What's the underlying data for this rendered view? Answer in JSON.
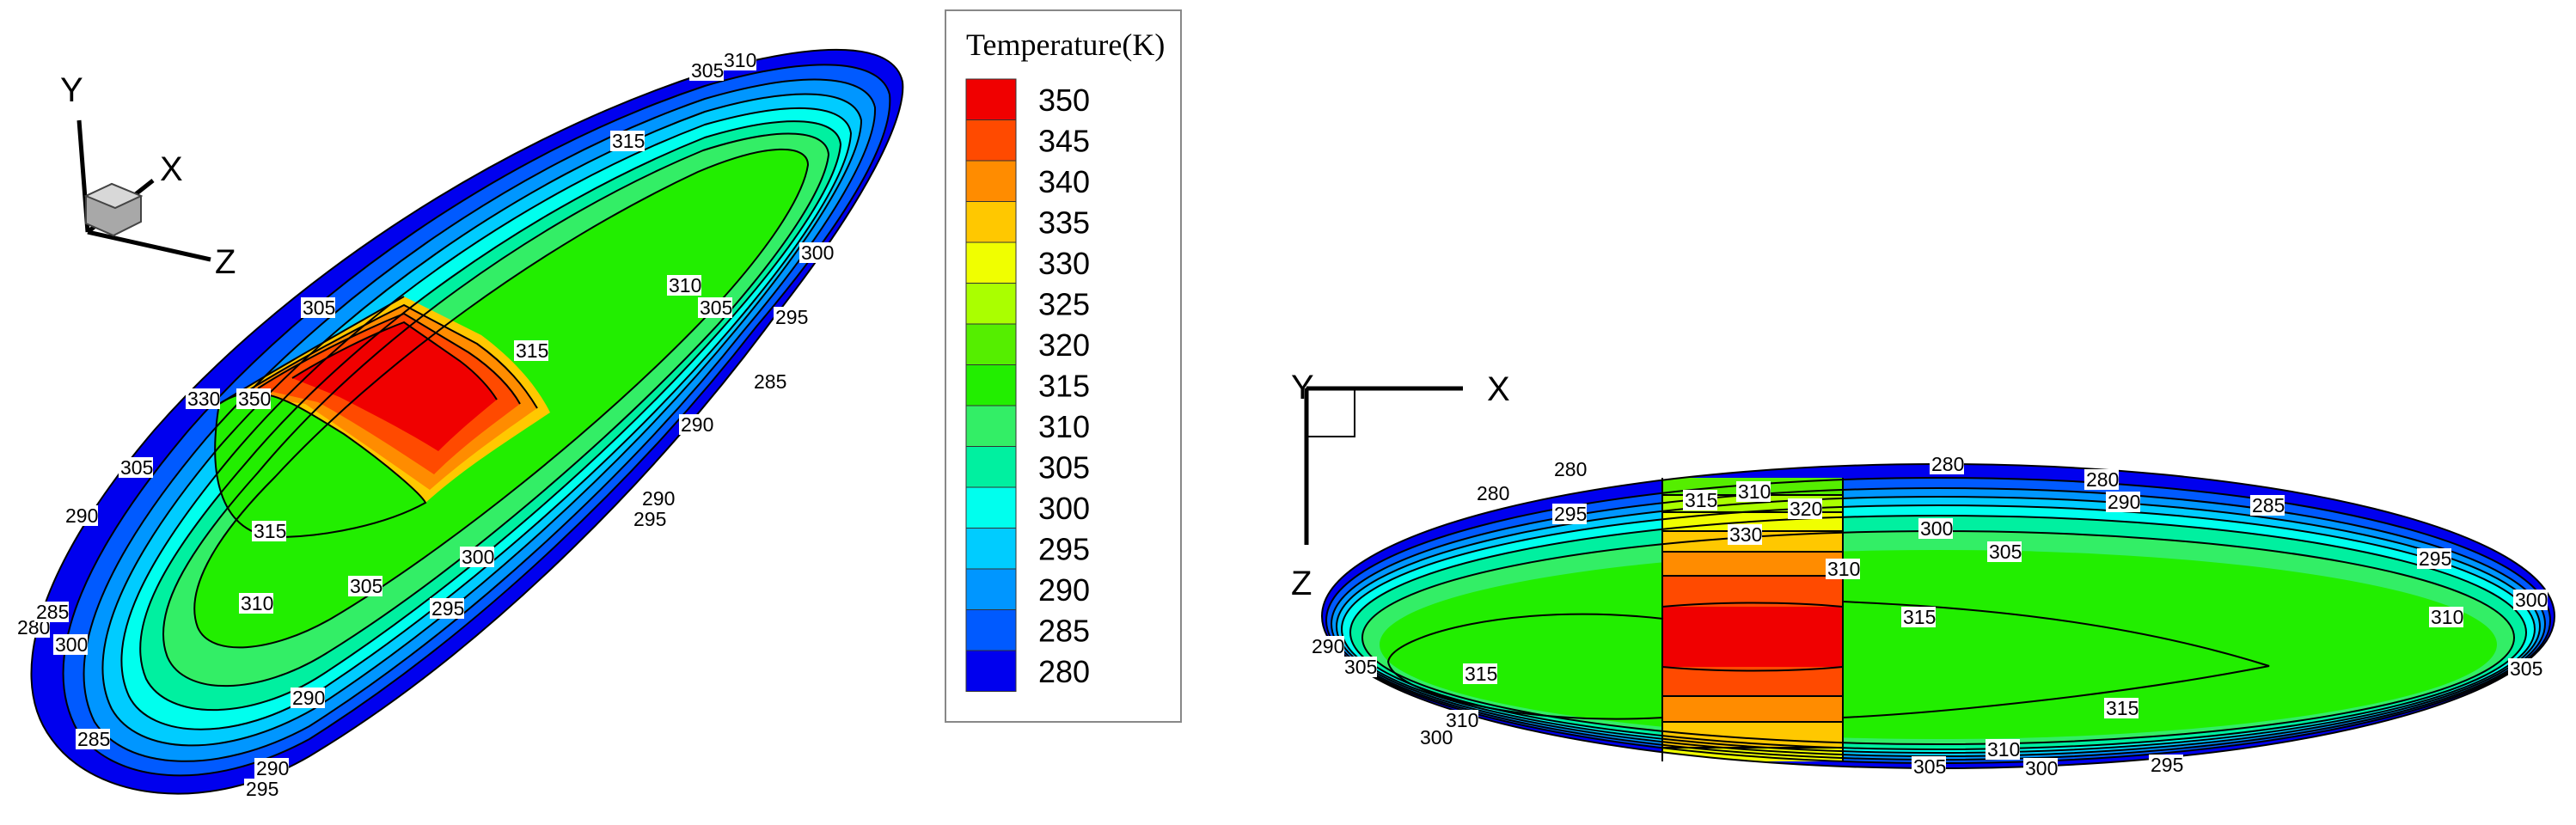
{
  "legend": {
    "title": "Temperature(K)",
    "levels": [
      {
        "value": "350",
        "color": "#f00000"
      },
      {
        "value": "345",
        "color": "#ff4a00"
      },
      {
        "value": "340",
        "color": "#ff8c00"
      },
      {
        "value": "335",
        "color": "#ffc800"
      },
      {
        "value": "330",
        "color": "#f0ff00"
      },
      {
        "value": "325",
        "color": "#aaff00"
      },
      {
        "value": "320",
        "color": "#55ee00"
      },
      {
        "value": "315",
        "color": "#22ee00"
      },
      {
        "value": "310",
        "color": "#33ee66"
      },
      {
        "value": "305",
        "color": "#00f0a0"
      },
      {
        "value": "300",
        "color": "#00ffee"
      },
      {
        "value": "295",
        "color": "#00ccff"
      },
      {
        "value": "290",
        "color": "#0096ff"
      },
      {
        "value": "285",
        "color": "#005aff"
      },
      {
        "value": "280",
        "color": "#0000ee"
      }
    ]
  },
  "left_view": {
    "triad": {
      "y": "Y",
      "x": "X",
      "z": "Z"
    },
    "labels": [
      "305",
      "310",
      "315",
      "310",
      "305",
      "300",
      "295",
      "285",
      "290",
      "290",
      "295",
      "305",
      "330",
      "350",
      "315",
      "305",
      "290",
      "315",
      "310",
      "305",
      "300",
      "295",
      "280",
      "285",
      "300",
      "285",
      "290",
      "290",
      "295"
    ]
  },
  "right_view": {
    "triad": {
      "y": "Y",
      "x": "X",
      "z": "Z"
    },
    "labels": [
      "280",
      "280",
      "280",
      "280",
      "295",
      "315",
      "310",
      "320",
      "290",
      "285",
      "330",
      "300",
      "305",
      "310",
      "295",
      "315",
      "300",
      "310",
      "315",
      "290",
      "305",
      "305",
      "310",
      "315",
      "300",
      "310",
      "305",
      "300",
      "295"
    ]
  }
}
